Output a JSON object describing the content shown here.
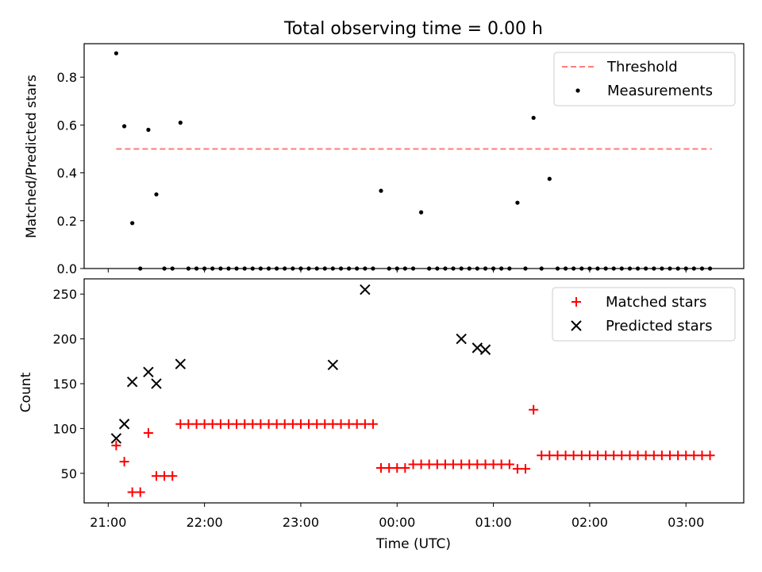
{
  "chart_data": [
    {
      "type": "scatter",
      "title": "Total observing time = 0.00 h",
      "xlabel": "",
      "ylabel": "Matched/Predicted stars",
      "ylim": [
        0,
        0.94
      ],
      "xlim": [
        -0.25,
        6.6
      ],
      "yticks": [
        "0.0",
        "0.2",
        "0.4",
        "0.6",
        "0.8"
      ],
      "grid": false,
      "legend_position": "top-right",
      "threshold": {
        "name": "Threshold",
        "value": 0.5,
        "x_range": [
          0.083,
          6.267
        ],
        "color": "#ff7b7b"
      },
      "series": [
        {
          "name": "Measurements",
          "color": "#000000",
          "x": [
            0.083,
            0.167,
            0.25,
            0.333,
            0.417,
            0.5,
            0.583,
            0.667,
            0.75,
            0.833,
            0.917,
            1.0,
            1.083,
            1.167,
            1.25,
            1.333,
            1.417,
            1.5,
            1.583,
            1.667,
            1.75,
            1.833,
            1.917,
            2.0,
            2.083,
            2.167,
            2.25,
            2.333,
            2.417,
            2.5,
            2.583,
            2.667,
            2.75,
            2.833,
            2.917,
            3.0,
            3.083,
            3.167,
            3.25,
            3.333,
            3.417,
            3.5,
            3.583,
            3.667,
            3.75,
            3.833,
            3.917,
            4.0,
            4.083,
            4.167,
            4.25,
            4.333,
            4.417,
            4.5,
            4.583,
            4.667,
            4.75,
            4.833,
            4.917,
            5.0,
            5.083,
            5.167,
            5.25,
            5.333,
            5.417,
            5.5,
            5.583,
            5.667,
            5.75,
            5.833,
            5.917,
            6.0,
            6.083,
            6.167,
            6.25
          ],
          "y": [
            0.9,
            0.595,
            0.19,
            0.0,
            0.58,
            0.31,
            0.0,
            0.0,
            0.61,
            0.0,
            0.0,
            0.0,
            0.0,
            0.0,
            0.0,
            0.0,
            0.0,
            0.0,
            0.0,
            0.0,
            0.0,
            0.0,
            0.0,
            0.0,
            0.0,
            0.0,
            0.0,
            0.0,
            0.0,
            0.0,
            0.0,
            0.0,
            0.0,
            0.325,
            0.0,
            0.0,
            0.0,
            0.0,
            0.235,
            0.0,
            0.0,
            0.0,
            0.0,
            0.0,
            0.0,
            0.0,
            0.0,
            0.0,
            0.0,
            0.0,
            0.275,
            0.0,
            0.63,
            0.0,
            0.375,
            0.0,
            0.0,
            0.0,
            0.0,
            0.0,
            0.0,
            0.0,
            0.0,
            0.0,
            0.0,
            0.0,
            0.0,
            0.0,
            0.0,
            0.0,
            0.0,
            0.0,
            0.0,
            0.0,
            0.0
          ]
        }
      ]
    },
    {
      "type": "scatter",
      "title": "",
      "xlabel": "Time (UTC)",
      "ylabel": "Count",
      "ylim": [
        17,
        267
      ],
      "xlim": [
        -0.25,
        6.6
      ],
      "yticks": [
        "50",
        "100",
        "150",
        "200",
        "250"
      ],
      "xticks": [
        {
          "value": 0.0,
          "label": "21:00"
        },
        {
          "value": 1.0,
          "label": "22:00"
        },
        {
          "value": 2.0,
          "label": "23:00"
        },
        {
          "value": 3.0,
          "label": "00:00"
        },
        {
          "value": 4.0,
          "label": "01:00"
        },
        {
          "value": 5.0,
          "label": "02:00"
        },
        {
          "value": 6.0,
          "label": "03:00"
        }
      ],
      "grid": false,
      "legend_position": "top-right",
      "series": [
        {
          "name": "Matched stars",
          "color": "#ff0000",
          "marker": "plus",
          "x": [
            0.083,
            0.167,
            0.25,
            0.333,
            0.417,
            0.5,
            0.583,
            0.667,
            0.75,
            0.833,
            0.917,
            1.0,
            1.083,
            1.167,
            1.25,
            1.333,
            1.417,
            1.5,
            1.583,
            1.667,
            1.75,
            1.833,
            1.917,
            2.0,
            2.083,
            2.167,
            2.25,
            2.333,
            2.417,
            2.5,
            2.583,
            2.667,
            2.75,
            2.833,
            2.917,
            3.0,
            3.083,
            3.167,
            3.25,
            3.333,
            3.417,
            3.5,
            3.583,
            3.667,
            3.75,
            3.833,
            3.917,
            4.0,
            4.083,
            4.167,
            4.25,
            4.333,
            4.417,
            4.5,
            4.583,
            4.667,
            4.75,
            4.833,
            4.917,
            5.0,
            5.083,
            5.167,
            5.25,
            5.333,
            5.417,
            5.5,
            5.583,
            5.667,
            5.75,
            5.833,
            5.917,
            6.0,
            6.083,
            6.167,
            6.25
          ],
          "y": [
            81,
            63,
            29,
            29,
            95,
            47,
            47,
            47,
            105,
            105,
            105,
            105,
            105,
            105,
            105,
            105,
            105,
            105,
            105,
            105,
            105,
            105,
            105,
            105,
            105,
            105,
            105,
            105,
            105,
            105,
            105,
            105,
            105,
            56,
            56,
            56,
            56,
            60,
            60,
            60,
            60,
            60,
            60,
            60,
            60,
            60,
            60,
            60,
            60,
            60,
            55,
            55,
            121,
            70,
            70,
            70,
            70,
            70,
            70,
            70,
            70,
            70,
            70,
            70,
            70,
            70,
            70,
            70,
            70,
            70,
            70,
            70,
            70,
            70,
            70
          ]
        },
        {
          "name": "Predicted stars",
          "color": "#000000",
          "marker": "x",
          "x": [
            0.083,
            0.167,
            0.25,
            0.417,
            0.5,
            0.75,
            2.333,
            2.667,
            3.667,
            3.833,
            3.917
          ],
          "y": [
            89,
            105,
            152,
            163,
            150,
            172,
            171,
            255,
            200,
            190,
            188
          ]
        }
      ]
    }
  ]
}
